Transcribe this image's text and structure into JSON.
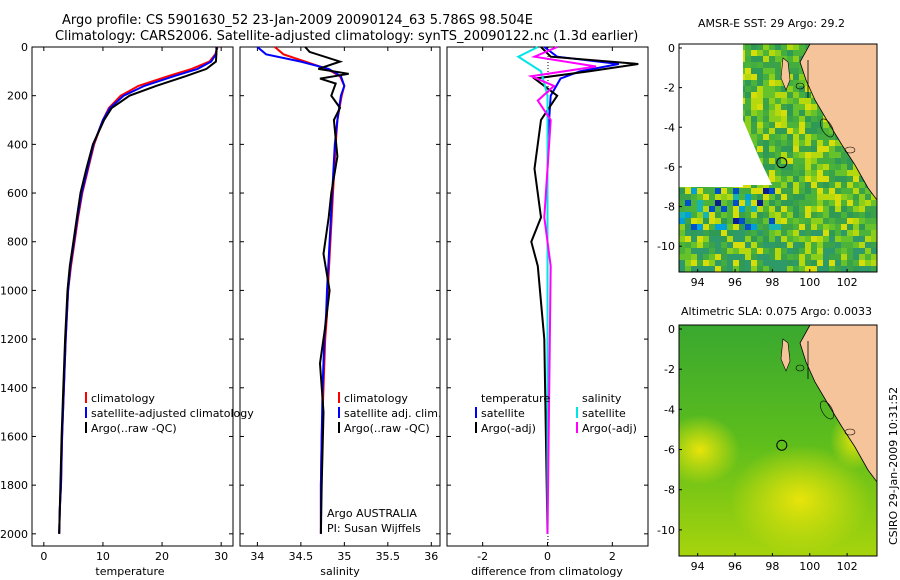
{
  "header": {
    "line1": "Argo profile: CS 5901630_52 23-Jan-2009 20090124_63 5.786S 98.504E",
    "line2": "Climatology: CARS2006. Satellite-adjusted climatology: synTS_20090122.nc (1.3d earlier)"
  },
  "side_label": "CSIRO 29-Jan-2009 10:31:52",
  "map_titles": {
    "sst": "AMSR-E SST: 29 Argo: 29.2",
    "sla": "Altimetric SLA: 0.075 Argo: 0.0033"
  },
  "colors": {
    "climatology": "#ff0000",
    "satellite": "#0000ff",
    "argo": "#000000",
    "salinity_satellite": "#00e5e5",
    "salinity_argo": "#ff00ff",
    "land": "#f5c49b"
  },
  "chart_data": [
    {
      "type": "line",
      "xlabel": "temperature",
      "ylabel": "",
      "xlim": [
        -2,
        32
      ],
      "ylim": [
        2050,
        0
      ],
      "x_ticks": [
        0,
        10,
        20,
        30
      ],
      "y_ticks": [
        0,
        200,
        400,
        600,
        800,
        1000,
        1200,
        1400,
        1600,
        1800,
        2000
      ],
      "legend": [
        "climatology",
        "satellite-adjusted climatology",
        "Argo(..raw -QC)"
      ],
      "legend_position": "lower-right",
      "series": [
        {
          "name": "climatology",
          "color": "red",
          "x": [
            29.4,
            29.0,
            28.0,
            25.0,
            21.0,
            16.0,
            13.0,
            11.0,
            10.0,
            8.5,
            7.5,
            6.5,
            5.8,
            5.2,
            4.6,
            4.1,
            3.7,
            3.4,
            3.1,
            2.9,
            2.7,
            2.6
          ],
          "y": [
            0,
            30,
            60,
            90,
            120,
            160,
            200,
            250,
            300,
            400,
            500,
            600,
            700,
            800,
            900,
            1000,
            1200,
            1400,
            1600,
            1800,
            1900,
            2000
          ]
        },
        {
          "name": "satellite-adjusted climatology",
          "color": "blue",
          "x": [
            29.3,
            29.1,
            28.3,
            26.0,
            22.0,
            17.0,
            13.5,
            11.2,
            10.0,
            8.4,
            7.4,
            6.4,
            5.7,
            5.1,
            4.5,
            4.1,
            3.7,
            3.4,
            3.1,
            2.9,
            2.7,
            2.6
          ],
          "y": [
            0,
            30,
            60,
            90,
            120,
            160,
            200,
            250,
            300,
            400,
            500,
            600,
            700,
            800,
            900,
            1000,
            1200,
            1400,
            1600,
            1800,
            1900,
            2000
          ]
        },
        {
          "name": "Argo(..raw -QC)",
          "color": "black",
          "x": [
            29.2,
            29.2,
            29.1,
            27.5,
            24.0,
            19.0,
            14.5,
            11.5,
            10.2,
            8.3,
            7.2,
            6.2,
            5.6,
            5.0,
            4.4,
            4.0,
            3.6,
            3.3,
            3.0,
            2.8,
            2.7,
            2.6
          ],
          "y": [
            0,
            30,
            60,
            90,
            120,
            160,
            200,
            250,
            300,
            400,
            500,
            600,
            700,
            800,
            900,
            1000,
            1200,
            1400,
            1600,
            1800,
            1900,
            2000
          ]
        }
      ]
    },
    {
      "type": "line",
      "xlabel": "salinity",
      "ylabel": "",
      "xlim": [
        33.8,
        36.1
      ],
      "ylim": [
        2050,
        0
      ],
      "x_ticks": [
        34,
        34.5,
        35,
        35.5,
        36
      ],
      "legend": [
        "climatology",
        "satellite adj. clim.",
        "Argo(..raw -QC)"
      ],
      "legend_position": "lower-right",
      "annotation": [
        "Argo AUSTRALIA",
        "PI: Susan Wijffels"
      ],
      "series": [
        {
          "name": "climatology",
          "color": "red",
          "x": [
            34.2,
            34.3,
            34.55,
            34.8,
            34.95,
            35.0,
            34.97,
            34.92,
            34.9,
            34.87,
            34.84,
            34.81,
            34.8,
            34.78,
            34.76,
            34.74,
            34.73,
            34.73
          ],
          "y": [
            0,
            30,
            60,
            90,
            120,
            160,
            200,
            300,
            400,
            600,
            800,
            1000,
            1100,
            1200,
            1400,
            1600,
            1800,
            2000
          ]
        },
        {
          "name": "satellite adj. clim.",
          "color": "blue",
          "x": [
            34.0,
            34.1,
            34.5,
            34.82,
            34.96,
            35.0,
            34.96,
            34.92,
            34.89,
            34.86,
            34.83,
            34.8,
            34.79,
            34.77,
            34.75,
            34.74,
            34.73,
            34.73
          ],
          "y": [
            0,
            30,
            60,
            90,
            120,
            160,
            200,
            300,
            400,
            600,
            800,
            1000,
            1100,
            1200,
            1400,
            1600,
            1800,
            2000
          ]
        },
        {
          "name": "Argo(..raw -QC)",
          "color": "black",
          "x": [
            34.55,
            34.6,
            34.95,
            34.7,
            35.05,
            34.72,
            34.9,
            34.85,
            34.95,
            34.88,
            34.92,
            34.85,
            34.82,
            34.76,
            34.83,
            34.78,
            34.72,
            34.76,
            34.74,
            34.73
          ],
          "y": [
            0,
            20,
            60,
            90,
            110,
            130,
            150,
            200,
            250,
            300,
            450,
            600,
            700,
            850,
            1000,
            1150,
            1300,
            1500,
            1800,
            2000
          ]
        }
      ]
    },
    {
      "type": "line",
      "xlabel": "difference from climatology",
      "ylabel": "",
      "xlim": [
        -3.1,
        3.1
      ],
      "ylim": [
        2050,
        0
      ],
      "x_ticks": [
        -2,
        0,
        2
      ],
      "legend": [
        "temperature",
        "satellite",
        "Argo(-adj)",
        "salinity",
        "satellite",
        "Argo(-adj)"
      ],
      "legend_position": "lower",
      "series": [
        {
          "name": "temperature satellite",
          "color": "blue",
          "x": [
            -0.1,
            0.3,
            2.2,
            1.0,
            0.4,
            0.1,
            0.05,
            0.0,
            0.0,
            0.0
          ],
          "y": [
            0,
            40,
            70,
            100,
            130,
            200,
            300,
            500,
            1000,
            2000
          ]
        },
        {
          "name": "temperature Argo(-adj)",
          "color": "black",
          "x": [
            -0.2,
            0.1,
            2.8,
            1.3,
            -0.4,
            0.3,
            -0.2,
            -0.4,
            -0.2,
            -0.5,
            -0.3,
            -0.1,
            0.0
          ],
          "y": [
            0,
            40,
            70,
            100,
            130,
            200,
            300,
            500,
            700,
            800,
            900,
            1200,
            2000
          ]
        },
        {
          "name": "salinity satellite",
          "color": "cyan",
          "x": [
            -0.3,
            -0.9,
            -0.2,
            0.0,
            0.0,
            0.0,
            0.0
          ],
          "y": [
            0,
            40,
            100,
            200,
            400,
            1000,
            2000
          ]
        },
        {
          "name": "salinity Argo(-adj)",
          "color": "magenta",
          "x": [
            0.3,
            -0.4,
            1.5,
            -0.5,
            0.2,
            -0.3,
            0.1,
            0.0,
            -0.1,
            0.1,
            0.0
          ],
          "y": [
            0,
            40,
            80,
            120,
            160,
            220,
            300,
            500,
            700,
            900,
            2000
          ]
        }
      ]
    },
    {
      "type": "heatmap",
      "title": "AMSR-E SST: 29 Argo: 29.2",
      "x_ticks": [
        94,
        96,
        98,
        100,
        102
      ],
      "y_ticks": [
        0,
        -2,
        -4,
        -6,
        -8,
        -10
      ],
      "xlim": [
        93,
        103.6
      ],
      "ylim": [
        -11.3,
        0.2
      ],
      "marker": {
        "lon": 98.504,
        "lat": -5.786
      }
    },
    {
      "type": "heatmap",
      "title": "Altimetric SLA: 0.075 Argo: 0.0033",
      "x_ticks": [
        94,
        96,
        98,
        100,
        102
      ],
      "y_ticks": [
        0,
        -2,
        -4,
        -6,
        -8,
        -10
      ],
      "xlim": [
        93,
        103.6
      ],
      "ylim": [
        -11.3,
        0.2
      ],
      "marker": {
        "lon": 98.504,
        "lat": -5.786
      }
    }
  ]
}
